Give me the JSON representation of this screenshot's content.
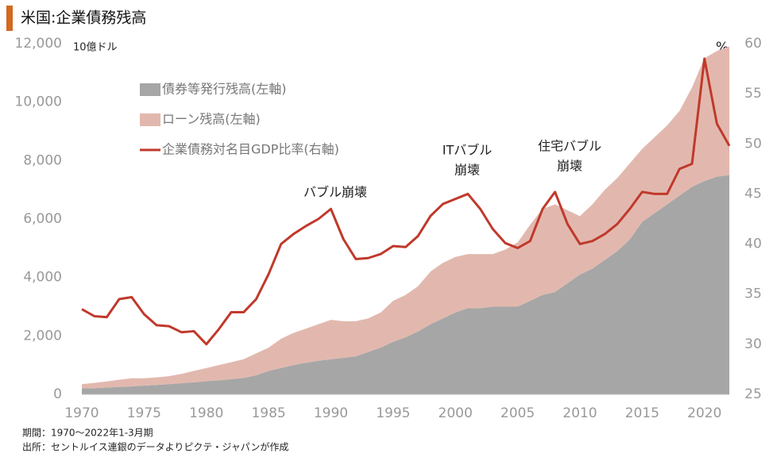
{
  "chart_data": {
    "type": "area_line",
    "title": "米国:企業債務残高",
    "y_label": "10億ドル",
    "y2_label": "%",
    "notes": [
      "期間：1970～2022年1-3月期",
      "出所：セントルイス連銀のデータよりピクテ・ジャパンが作成"
    ],
    "annotations": [
      [
        "バブル崩壊"
      ],
      [
        "ITバブル",
        "崩壊"
      ],
      [
        "住宅バブル",
        "崩壊"
      ]
    ],
    "x": [
      1970,
      1971,
      1972,
      1973,
      1974,
      1975,
      1976,
      1977,
      1978,
      1979,
      1980,
      1981,
      1982,
      1983,
      1984,
      1985,
      1986,
      1987,
      1988,
      1989,
      1990,
      1991,
      1992,
      1993,
      1994,
      1995,
      1996,
      1997,
      1998,
      1999,
      2000,
      2001,
      2002,
      2003,
      2004,
      2005,
      2006,
      2007,
      2008,
      2009,
      2010,
      2011,
      2012,
      2013,
      2014,
      2015,
      2016,
      2017,
      2018,
      2019,
      2020,
      2021,
      2022
    ],
    "series": [
      {
        "name": "債券等発行残高(左軸)",
        "color": "#a6a6a6",
        "stack": true,
        "values": [
          200,
          210,
          230,
          250,
          270,
          300,
          320,
          350,
          380,
          410,
          450,
          480,
          520,
          560,
          650,
          800,
          900,
          1000,
          1080,
          1150,
          1200,
          1250,
          1300,
          1450,
          1600,
          1800,
          1950,
          2150,
          2400,
          2600,
          2800,
          2950,
          2950,
          3000,
          3000,
          3000,
          3200,
          3400,
          3500,
          3800,
          4100,
          4300,
          4600,
          4900,
          5300,
          5900,
          6200,
          6500,
          6800,
          7100,
          7300,
          7450,
          7500
        ]
      },
      {
        "name": "ローン残高(左軸)",
        "color": "#e2b8ae",
        "stack": true,
        "values": [
          150,
          180,
          210,
          250,
          280,
          250,
          260,
          270,
          320,
          390,
          450,
          520,
          580,
          640,
          750,
          800,
          1000,
          1100,
          1170,
          1250,
          1350,
          1250,
          1200,
          1150,
          1200,
          1400,
          1450,
          1550,
          1800,
          1900,
          1900,
          1850,
          1850,
          1800,
          1950,
          2200,
          2600,
          2950,
          3000,
          2500,
          2000,
          2200,
          2400,
          2500,
          2600,
          2500,
          2600,
          2700,
          2900,
          3400,
          4200,
          4300,
          4400
        ]
      },
      {
        "name": "企業債務対名目GDP比率(右軸)",
        "color": "#c0392b",
        "axis": "y2",
        "values": [
          33.5,
          32.8,
          32.7,
          34.5,
          34.7,
          33,
          31.9,
          31.8,
          31.2,
          31.3,
          30,
          31.5,
          33.2,
          33.2,
          34.5,
          37,
          40,
          41,
          41.8,
          42.5,
          43.5,
          40.5,
          38.5,
          38.6,
          39,
          39.8,
          39.7,
          40.8,
          42.8,
          44,
          44.5,
          45,
          43.5,
          41.5,
          40.1,
          39.6,
          40.3,
          43.5,
          45.2,
          42,
          40,
          40.3,
          41,
          42,
          43.5,
          45.2,
          45,
          45,
          47.5,
          48,
          58.5,
          52,
          49.8
        ]
      }
    ],
    "xlim": [
      1970,
      2022
    ],
    "xticks": [
      1970,
      1975,
      1980,
      1985,
      1990,
      1995,
      2000,
      2005,
      2010,
      2015,
      2020
    ],
    "ylim": [
      0,
      12000
    ],
    "yticks": [
      0,
      {
        "value": 2000,
        "label": "2,000"
      },
      {
        "value": 4000,
        "label": "4,000"
      },
      {
        "value": 6000,
        "label": "6,000"
      },
      {
        "value": 8000,
        "label": "8,000"
      },
      {
        "value": 10000,
        "label": "10,000"
      },
      {
        "value": 12000,
        "label": "12,000"
      }
    ],
    "y2lim": [
      25,
      60
    ],
    "y2ticks": [
      25,
      30,
      35,
      40,
      45,
      50,
      55,
      60
    ]
  }
}
